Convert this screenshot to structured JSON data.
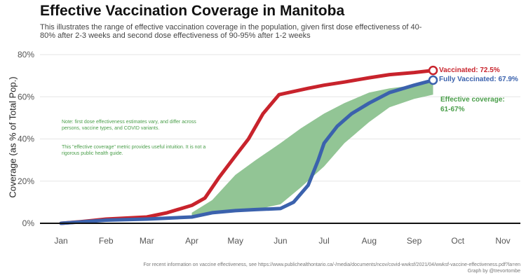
{
  "title": "Effective Vaccination Coverage in Manitoba",
  "subtitle": "This illustrates the range of effective vaccination coverage in the population, given first dose effectiveness of 40-80% after 2-3 weeks and second dose effectiveness of 90-95% after 1-2 weeks",
  "notes": {
    "note1": "Note: first dose effectiveness estimates vary, and differ across persons, vaccine types, and COVID variants.",
    "note2": "This \"effective coverage\" metric provides useful intuition. It is not a rigorous public health guide."
  },
  "labels": {
    "vaccinated": "Vaccinated: 72.5%",
    "fully_vaccinated": "Fully Vaccinated: 67.9%",
    "effective_line1": "Effective coverage:",
    "effective_line2": "61-67%"
  },
  "footer": {
    "line1": "For recent information on vaccine effectiveness, see https://www.publichealthontario.ca/-/media/documents/ncov/covid-wwksf/2021/04/wwksf-vaccine-effectiveness.pdf?la=en",
    "line2": "Graph by @trevortombe"
  },
  "colors": {
    "vaccinated": "#c8232c",
    "fully_vaccinated": "#3b62ad",
    "effective_band": "#8cc28f",
    "grid": "#e6e6e6",
    "axis": "#111111",
    "tick_text": "#555555"
  },
  "chart_data": {
    "type": "line",
    "title": "Effective Vaccination Coverage in Manitoba",
    "ylabel": "Coverage (as % of Total Pop.)",
    "xlabel": "",
    "x_ticks": [
      "Jan",
      "Feb",
      "Mar",
      "Apr",
      "May",
      "Jun",
      "Jul",
      "Aug",
      "Sep",
      "Oct",
      "Nov"
    ],
    "y_ticks": [
      "0%",
      "20%",
      "40%",
      "60%",
      "80%"
    ],
    "y_tick_values": [
      0,
      20,
      40,
      60,
      80
    ],
    "xlim": [
      "2021-01-01",
      "2021-11-01"
    ],
    "ylim": [
      0,
      80
    ],
    "grid": true,
    "series": [
      {
        "name": "Vaccinated",
        "color": "#c8232c",
        "x": [
          "2021-01-01",
          "2021-01-15",
          "2021-02-01",
          "2021-02-15",
          "2021-03-01",
          "2021-03-15",
          "2021-04-01",
          "2021-04-10",
          "2021-04-20",
          "2021-05-01",
          "2021-05-10",
          "2021-05-20",
          "2021-05-31",
          "2021-06-10",
          "2021-06-20",
          "2021-07-01",
          "2021-07-15",
          "2021-08-01",
          "2021-08-15",
          "2021-09-01",
          "2021-09-14"
        ],
        "values": [
          0,
          0.8,
          2,
          2.5,
          3,
          5,
          8.5,
          12,
          22,
          32,
          40,
          52,
          61,
          62.5,
          64,
          65.5,
          67,
          69,
          70.5,
          71.5,
          72.5
        ]
      },
      {
        "name": "Fully Vaccinated",
        "color": "#3b62ad",
        "x": [
          "2021-01-01",
          "2021-02-01",
          "2021-03-01",
          "2021-04-01",
          "2021-04-15",
          "2021-05-01",
          "2021-05-15",
          "2021-06-01",
          "2021-06-10",
          "2021-06-20",
          "2021-06-27",
          "2021-07-01",
          "2021-07-10",
          "2021-07-20",
          "2021-08-01",
          "2021-08-15",
          "2021-09-01",
          "2021-09-14"
        ],
        "values": [
          0,
          1.5,
          2,
          3,
          5,
          6,
          6.5,
          7,
          10,
          18,
          30,
          38,
          46,
          52,
          57,
          62,
          65.5,
          67.9
        ]
      }
    ],
    "band": {
      "name": "Effective coverage",
      "x": [
        "2021-04-01",
        "2021-04-15",
        "2021-05-01",
        "2021-05-15",
        "2021-06-01",
        "2021-06-15",
        "2021-07-01",
        "2021-07-15",
        "2021-08-01",
        "2021-08-15",
        "2021-09-01",
        "2021-09-14"
      ],
      "lower": [
        3.5,
        5,
        6,
        6.5,
        9,
        17,
        27,
        38,
        48,
        55,
        59,
        61
      ],
      "upper": [
        5,
        11,
        23,
        30,
        38,
        45,
        52,
        57,
        62,
        64,
        65.5,
        67
      ]
    },
    "endpoint_labels": {
      "vaccinated": 72.5,
      "fully_vaccinated": 67.9,
      "effective_range": [
        61,
        67
      ]
    },
    "legend": "none"
  }
}
